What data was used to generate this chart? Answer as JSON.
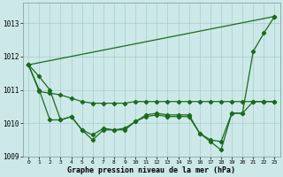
{
  "bg_color": "#cce8e8",
  "grid_color": "#aacccc",
  "line_color": "#1a6b1a",
  "xlabel": "Graphe pression niveau de la mer (hPa)",
  "xlim": [
    -0.5,
    23.5
  ],
  "ylim": [
    1009.0,
    1013.6
  ],
  "yticks": [
    1009,
    1010,
    1011,
    1012,
    1013
  ],
  "xticks": [
    0,
    1,
    2,
    3,
    4,
    5,
    6,
    7,
    8,
    9,
    10,
    11,
    12,
    13,
    14,
    15,
    16,
    17,
    18,
    19,
    20,
    21,
    22,
    23
  ],
  "line_A": [
    1011.75,
    null,
    null,
    null,
    null,
    null,
    null,
    null,
    null,
    null,
    null,
    null,
    null,
    null,
    null,
    null,
    null,
    null,
    null,
    null,
    null,
    null,
    null,
    1013.2
  ],
  "line_B": [
    1011.75,
    1011.4,
    1011.0,
    1010.1,
    1010.2,
    1009.8,
    1009.5,
    1009.8,
    1009.8,
    1009.8,
    1010.05,
    1010.2,
    1010.25,
    1010.2,
    1010.2,
    1010.2,
    1009.7,
    1009.45,
    1009.2,
    1010.3,
    1010.3,
    1012.15,
    1012.7,
    1013.2
  ],
  "line_C": [
    1011.75,
    1010.95,
    1010.9,
    1010.85,
    1010.75,
    1010.65,
    1010.6,
    1010.6,
    1010.6,
    1010.6,
    1010.65,
    1010.65,
    1010.65,
    1010.65,
    1010.65,
    1010.65,
    1010.65,
    1010.65,
    1010.65,
    1010.65,
    1010.65,
    1010.65,
    1010.65,
    1010.65
  ],
  "line_D": [
    1011.75,
    1011.0,
    1010.1,
    1010.1,
    1010.2,
    1009.8,
    1009.65,
    1009.85,
    1009.8,
    1009.85,
    1010.05,
    1010.25,
    1010.3,
    1010.25,
    1010.25,
    1010.25,
    1009.7,
    1009.5,
    1009.45,
    1010.3,
    1010.3,
    1010.65,
    1010.65,
    1010.65
  ]
}
